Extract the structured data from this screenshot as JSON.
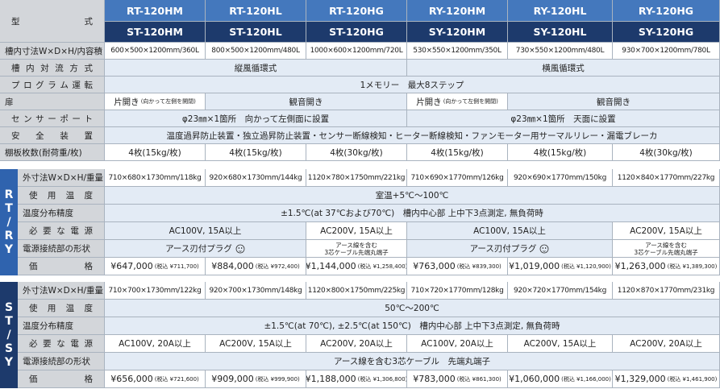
{
  "header": {
    "label": "型 式",
    "top_models": [
      "RT-120HM",
      "RT-120HL",
      "RT-120HG",
      "RY-120HM",
      "RY-120HL",
      "RY-120HG"
    ],
    "bottom_models": [
      "ST-120HM",
      "ST-120HL",
      "ST-120HG",
      "SY-120HM",
      "SY-120HL",
      "SY-120HG"
    ]
  },
  "common_rows": [
    {
      "label": "槽内寸法W×D×H/内容積",
      "cells": [
        "600×500×1200mm/360L",
        "800×500×1200mm/480L",
        "1000×600×1200mm/720L",
        "530×550×1200mm/350L",
        "730×550×1200mm/480L",
        "930×700×1200mm/780L"
      ]
    },
    {
      "label": "槽 内 対 流 方 式",
      "cells": [
        "縦風循環式",
        "横風循環式"
      ]
    },
    {
      "label": "プ ロ グ ラ ム 運 転",
      "cells": [
        "1メモリー　最大8ステップ"
      ]
    },
    {
      "label": "扉",
      "cells": [
        {
          "text": "片開き",
          "note": "(向かって左側を開閉)"
        },
        "観音開き",
        {
          "text": "片開き",
          "note": "(向かって左側を開閉)"
        },
        "観音開き"
      ]
    },
    {
      "label": "セ ン サ ー ポ ー ト",
      "cells": [
        "φ23㎜×1箇所　向かって左側面に設置",
        "φ23㎜×1箇所　天面に設置"
      ]
    },
    {
      "label": "安 全 装 置",
      "cells": [
        "温度過昇防止装置・独立過昇防止装置・センサー断線検知・ヒーター断線検知・ファンモーター用サーマルリレー・漏電ブレーカ"
      ]
    },
    {
      "label": "棚板枚数(耐荷重/枚)",
      "cells": [
        "4枚(15kg/枚)",
        "4枚(15kg/枚)",
        "4枚(30kg/枚)",
        "4枚(15kg/枚)",
        "4枚(15kg/枚)",
        "4枚(30kg/枚)"
      ]
    }
  ],
  "sections": [
    {
      "label": "RT/RY",
      "rows": [
        {
          "label": "外寸法W×D×H/重量",
          "cells": [
            "710×680×1730mm/118kg",
            "920×680×1730mm/144kg",
            "1120×780×1750mm/221kg",
            "710×690×1770mm/126kg",
            "920×690×1770mm/150kg",
            "1120×840×1770mm/227kg"
          ]
        },
        {
          "label": "使 用 温 度",
          "cells": [
            "室温+5℃～100℃"
          ]
        },
        {
          "label": "温度分布精度",
          "cells": [
            "±1.5℃(at 37℃および70℃)　槽内中心部 上中下3点測定, 無負荷時"
          ]
        },
        {
          "label": "必 要 な 電 源",
          "cells": [
            "AC100V, 15A以上",
            "AC200V, 15A以上",
            "AC100V, 15A以上",
            "AC200V, 15A以上"
          ]
        },
        {
          "label": "電源接続部の形状",
          "cells": [
            "アース刃付プラグ",
            {
              "lines": [
                "アース線を含む",
                "3芯ケーブル先端丸端子"
              ]
            },
            "アース刃付プラグ",
            {
              "lines": [
                "アース線を含む",
                "3芯ケーブル先端丸端子"
              ]
            }
          ]
        },
        {
          "label": "価 格",
          "cells": [
            {
              "price": "¥647,000",
              "tax": "(税込 ¥711,700)"
            },
            {
              "price": "¥884,000",
              "tax": "(税込 ¥972,400)"
            },
            {
              "price": "¥1,144,000",
              "tax": "(税込 ¥1,258,400)"
            },
            {
              "price": "¥763,000",
              "tax": "(税込 ¥839,300)"
            },
            {
              "price": "¥1,019,000",
              "tax": "(税込 ¥1,120,900)"
            },
            {
              "price": "¥1,263,000",
              "tax": "(税込 ¥1,389,300)"
            }
          ]
        }
      ]
    },
    {
      "label": "ST/SY",
      "rows": [
        {
          "label": "外寸法W×D×H/重量",
          "cells": [
            "710×700×1730mm/122kg",
            "920×700×1730mm/148kg",
            "1120×800×1750mm/225kg",
            "710×720×1770mm/128kg",
            "920×720×1770mm/154kg",
            "1120×870×1770mm/231kg"
          ]
        },
        {
          "label": "使 用 温 度",
          "cells": [
            "50℃～200℃"
          ]
        },
        {
          "label": "温度分布精度",
          "cells": [
            "±1.5℃(at 70℃), ±2.5℃(at 150℃)　槽内中心部 上中下3点測定, 無負荷時"
          ]
        },
        {
          "label": "必 要 な 電 源",
          "cells": [
            "AC100V, 20A以上",
            "AC200V, 15A以上",
            "AC200V, 20A以上",
            "AC100V, 20A以上",
            "AC200V, 15A以上",
            "AC200V, 20A以上"
          ]
        },
        {
          "label": "電源接続部の形状",
          "cells": [
            "アース線を含む3芯ケーブル　先端丸端子"
          ]
        },
        {
          "label": "価 格",
          "cells": [
            {
              "price": "¥656,000",
              "tax": "(税込 ¥721,600)"
            },
            {
              "price": "¥909,000",
              "tax": "(税込 ¥999,900)"
            },
            {
              "price": "¥1,188,000",
              "tax": "(税込 ¥1,306,800)"
            },
            {
              "price": "¥783,000",
              "tax": "(税込 ¥861,300)"
            },
            {
              "price": "¥1,060,000",
              "tax": "(税込 ¥1,166,000)"
            },
            {
              "price": "¥1,329,000",
              "tax": "(税込 ¥1,461,900)"
            }
          ]
        }
      ]
    }
  ]
}
